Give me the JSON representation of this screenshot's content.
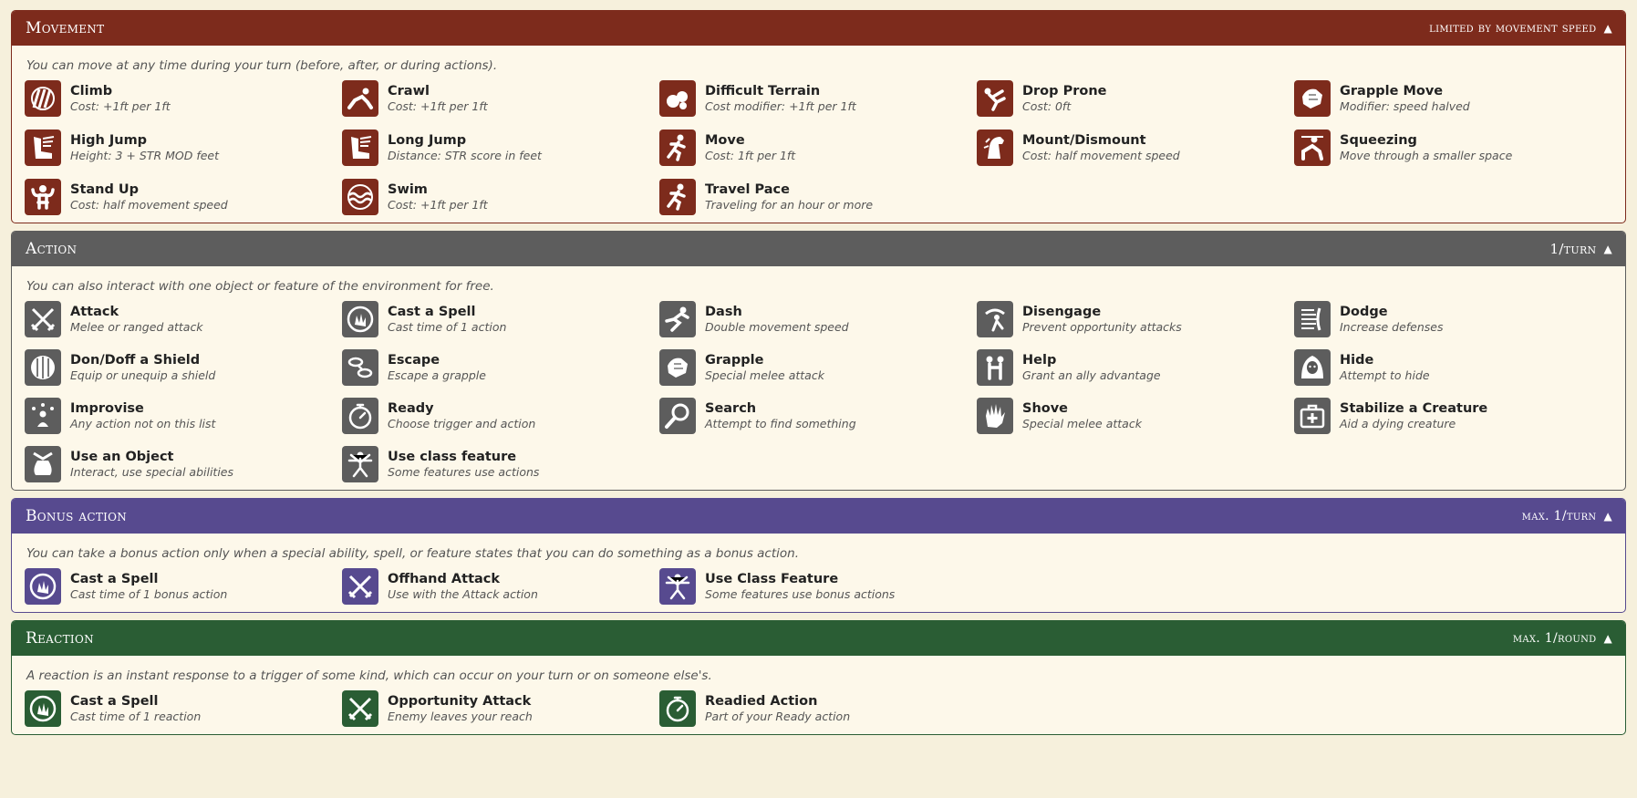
{
  "sections": {
    "movement": {
      "title": "Movement",
      "limit": "limited by movement speed",
      "note": "You can move at any time during your turn (before, after, or during actions).",
      "items": [
        {
          "name": "Climb",
          "desc": "Cost: +1ft per 1ft",
          "icon": "climb-icon"
        },
        {
          "name": "Crawl",
          "desc": "Cost: +1ft per 1ft",
          "icon": "crawl-icon"
        },
        {
          "name": "Difficult Terrain",
          "desc": "Cost modifier: +1ft per 1ft",
          "icon": "rocks-icon"
        },
        {
          "name": "Drop Prone",
          "desc": "Cost: 0ft",
          "icon": "falling-icon"
        },
        {
          "name": "Grapple Move",
          "desc": "Modifier: speed halved",
          "icon": "grab-icon"
        },
        {
          "name": "High Jump",
          "desc": "Height: 3 + STR MOD feet",
          "icon": "winged-boot-icon"
        },
        {
          "name": "Long Jump",
          "desc": "Distance: STR score in feet",
          "icon": "winged-boot-icon"
        },
        {
          "name": "Move",
          "desc": "Cost: 1ft per 1ft",
          "icon": "running-icon"
        },
        {
          "name": "Mount/Dismount",
          "desc": "Cost: half movement speed",
          "icon": "horse-head-icon"
        },
        {
          "name": "Squeezing",
          "desc": "Move through a smaller space",
          "icon": "crouch-icon"
        },
        {
          "name": "Stand Up",
          "desc": "Cost: half movement speed",
          "icon": "strongman-icon"
        },
        {
          "name": "Swim",
          "desc": "Cost: +1ft per 1ft",
          "icon": "waves-icon"
        },
        {
          "name": "Travel Pace",
          "desc": "Traveling for an hour or more",
          "icon": "running-icon"
        }
      ]
    },
    "action": {
      "title": "Action",
      "limit": "1/turn",
      "note": "You can also interact with one object or feature of the environment for free.",
      "items": [
        {
          "name": "Attack",
          "desc": "Melee or ranged attack",
          "icon": "crossed-swords-icon"
        },
        {
          "name": "Cast a Spell",
          "desc": "Cast time of 1 action",
          "icon": "magic-hand-icon"
        },
        {
          "name": "Dash",
          "desc": "Double movement speed",
          "icon": "sprint-icon"
        },
        {
          "name": "Disengage",
          "desc": "Prevent opportunity attacks",
          "icon": "escape-arrow-icon"
        },
        {
          "name": "Dodge",
          "desc": "Increase defenses",
          "icon": "dodge-icon"
        },
        {
          "name": "Don/Doff a Shield",
          "desc": "Equip or unequip a shield",
          "icon": "shield-icon"
        },
        {
          "name": "Escape",
          "desc": "Escape a grapple",
          "icon": "shackles-icon"
        },
        {
          "name": "Grapple",
          "desc": "Special melee attack",
          "icon": "grab-icon"
        },
        {
          "name": "Help",
          "desc": "Grant an ally advantage",
          "icon": "two-people-icon"
        },
        {
          "name": "Hide",
          "desc": "Attempt to hide",
          "icon": "hood-icon"
        },
        {
          "name": "Improvise",
          "desc": "Any action not on this list",
          "icon": "juggler-icon"
        },
        {
          "name": "Ready",
          "desc": "Choose trigger and action",
          "icon": "stopwatch-icon"
        },
        {
          "name": "Search",
          "desc": "Attempt to find something",
          "icon": "magnifier-icon"
        },
        {
          "name": "Shove",
          "desc": "Special melee attack",
          "icon": "hand-icon"
        },
        {
          "name": "Stabilize a Creature",
          "desc": "Aid a dying creature",
          "icon": "first-aid-icon"
        },
        {
          "name": "Use an Object",
          "desc": "Interact, use special abilities",
          "icon": "sack-icon"
        },
        {
          "name": "Use class feature",
          "desc": "Some features use actions",
          "icon": "vitruvian-man-icon"
        }
      ]
    },
    "bonus": {
      "title": "Bonus action",
      "limit": "max. 1/turn",
      "note": "You can take a bonus action only when a special ability, spell, or feature states that you can do something as a bonus action.",
      "items": [
        {
          "name": "Cast a Spell",
          "desc": "Cast time of 1 bonus action",
          "icon": "magic-hand-icon"
        },
        {
          "name": "Offhand Attack",
          "desc": "Use with the Attack action",
          "icon": "crossed-swords-icon"
        },
        {
          "name": "Use Class Feature",
          "desc": "Some features use bonus actions",
          "icon": "vitruvian-man-icon"
        }
      ]
    },
    "reaction": {
      "title": "Reaction",
      "limit": "max. 1/round",
      "note": "A reaction is an instant response to a trigger of some kind, which can occur on your turn or on someone else's.",
      "items": [
        {
          "name": "Cast a Spell",
          "desc": "Cast time of 1 reaction",
          "icon": "magic-hand-icon"
        },
        {
          "name": "Opportunity Attack",
          "desc": "Enemy leaves your reach",
          "icon": "crossed-swords-icon"
        },
        {
          "name": "Readied Action",
          "desc": "Part of your Ready action",
          "icon": "stopwatch-icon"
        }
      ]
    }
  },
  "colors": {
    "movement": "#7d2b1c",
    "action": "#5d5d5d",
    "bonus": "#574a8f",
    "reaction": "#2a5d34"
  },
  "collapse_glyph": "▲"
}
